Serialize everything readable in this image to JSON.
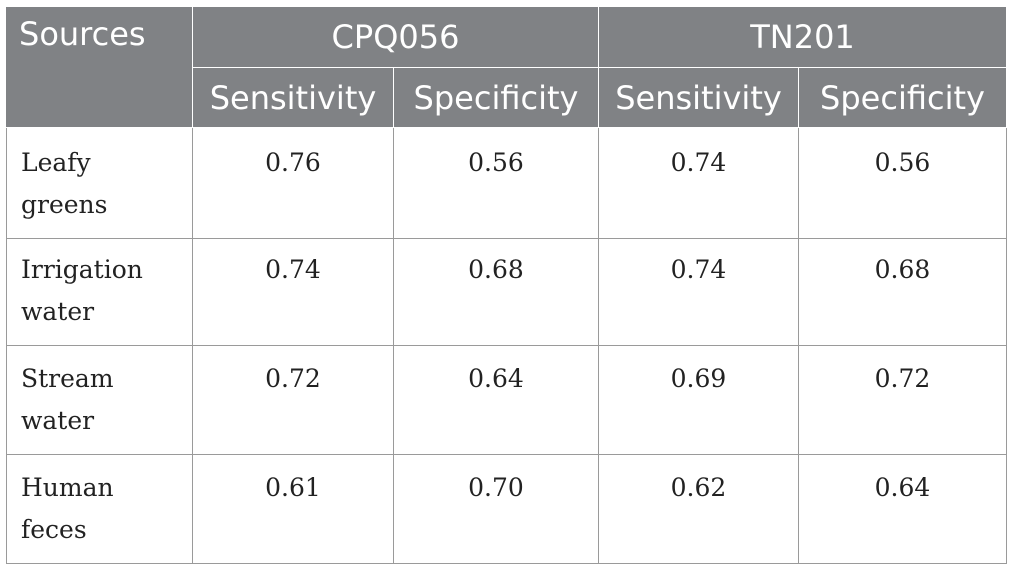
{
  "header": {
    "sources_label": "Sources",
    "groups": [
      "CPQ056",
      "TN201"
    ],
    "subheaders": [
      "Sensitivity",
      "Specificity",
      "Sensitivity",
      "Specificity"
    ]
  },
  "rows": [
    {
      "source": "Leafy greens",
      "values": [
        "0.76",
        "0.56",
        "0.74",
        "0.56"
      ]
    },
    {
      "source": "Irrigation water",
      "values": [
        "0.74",
        "0.68",
        "0.74",
        "0.68"
      ]
    },
    {
      "source": "Stream water",
      "values": [
        "0.72",
        "0.64",
        "0.69",
        "0.72"
      ]
    },
    {
      "source": "Human feces",
      "values": [
        "0.61",
        "0.70",
        "0.62",
        "0.64"
      ]
    }
  ],
  "colors": {
    "header_bg": "#808285",
    "header_text": "#ffffff",
    "border": "#9a9a9a"
  }
}
